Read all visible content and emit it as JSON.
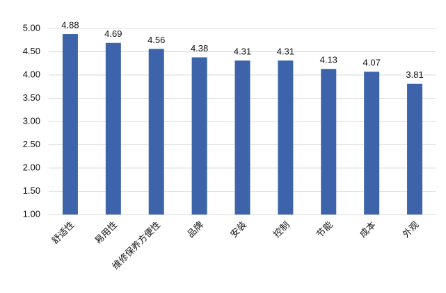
{
  "chart_data": {
    "type": "bar",
    "categories": [
      "舒适性",
      "易用性",
      "维修保养方便性",
      "品牌",
      "安装",
      "控制",
      "节能",
      "成本",
      "外观"
    ],
    "values": [
      4.88,
      4.69,
      4.56,
      4.38,
      4.31,
      4.31,
      4.13,
      4.07,
      3.81
    ],
    "color": "#3d64aa",
    "ylim": [
      1,
      5
    ],
    "yticks": [
      {
        "value": 1,
        "label": "1.00"
      },
      {
        "value": 1.5,
        "label": "1.50"
      },
      {
        "value": 2,
        "label": "2.00"
      },
      {
        "value": 2.5,
        "label": "2.50"
      },
      {
        "value": 3,
        "label": "3.00"
      },
      {
        "value": 3.5,
        "label": "3.50"
      },
      {
        "value": 4,
        "label": "4.00"
      },
      {
        "value": 4.5,
        "label": "4.50"
      },
      {
        "value": 5,
        "label": "5.00"
      }
    ],
    "grid": true
  }
}
